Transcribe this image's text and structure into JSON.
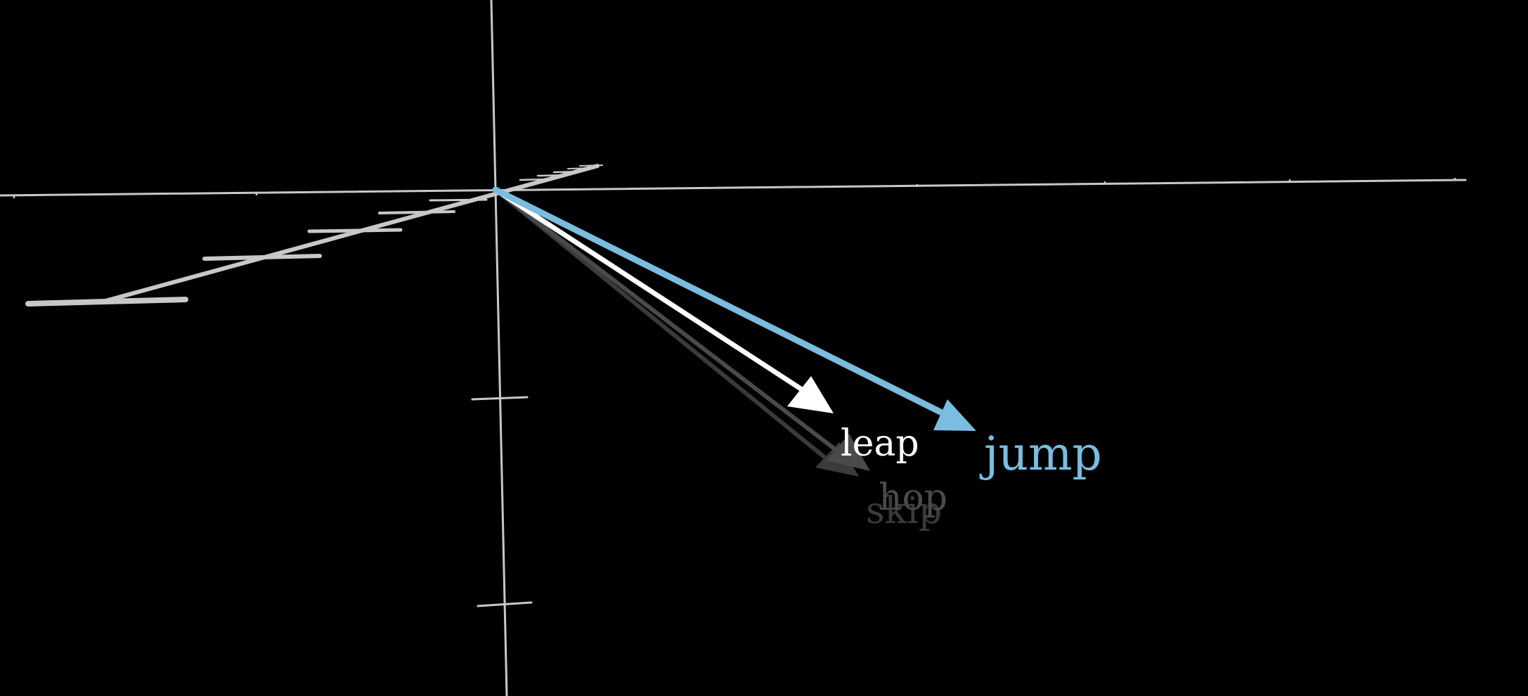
{
  "background_color": "#000000",
  "axis_color": "#c8c8c8",
  "vectors": [
    {
      "id": "skip",
      "label": "skip",
      "color": "#3a3a3a",
      "emphasis": "faded"
    },
    {
      "id": "hop",
      "label": "hop",
      "color": "#4a4a4a",
      "emphasis": "faded"
    },
    {
      "id": "leap",
      "label": "leap",
      "color": "#ffffff",
      "emphasis": "primary"
    },
    {
      "id": "jump",
      "label": "jump",
      "color": "#79bde0",
      "emphasis": "highlight"
    }
  ]
}
